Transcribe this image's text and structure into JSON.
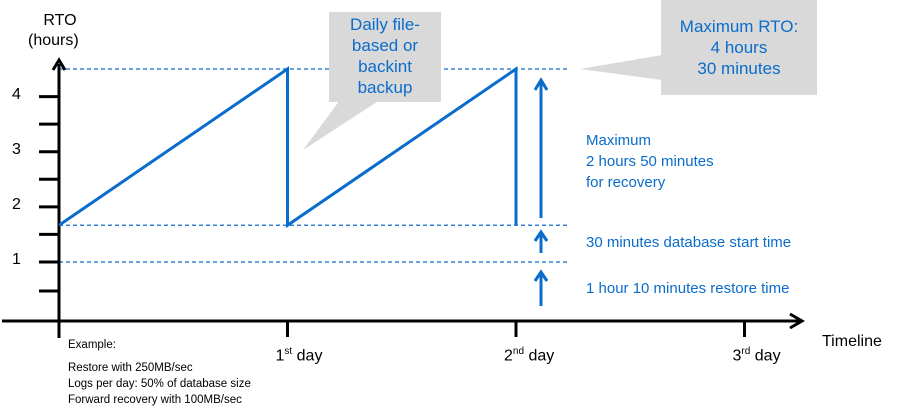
{
  "chart_data": {
    "type": "line",
    "ylabel": [
      "RTO",
      "(hours)"
    ],
    "xlabel": "Timeline",
    "y_ticks": [
      "1",
      "2",
      "3",
      "4"
    ],
    "x_ticks": [
      {
        "num": "1",
        "sup": "st",
        "word": "day"
      },
      {
        "num": "2",
        "sup": "nd",
        "word": "day"
      },
      {
        "num": "3",
        "sup": "rd",
        "word": "day"
      }
    ],
    "series": [
      {
        "x": [
          0,
          1,
          1,
          2,
          2
        ],
        "y": [
          1.6667,
          4.5,
          1.6667,
          4.5,
          1.6667
        ]
      }
    ],
    "reference_lines_hours": [
      1,
      1.6667,
      4.5
    ],
    "ylim": [
      0,
      4.8
    ],
    "xlim": [
      0,
      3.2
    ],
    "line_color": "#0a6ccc"
  },
  "callouts": {
    "backup": [
      "Daily file-",
      "based or",
      "backint",
      "backup"
    ],
    "max_rto": [
      "Maximum RTO:",
      "4 hours",
      "30 minutes"
    ]
  },
  "annotations": {
    "recovery": [
      "Maximum",
      "2 hours 50 minutes",
      "for recovery"
    ],
    "start_time": "30 minutes database start time",
    "restore_time": "1 hour 10 minutes restore time"
  },
  "example": {
    "title": "Example:",
    "lines": [
      "Restore with 250MB/sec",
      "Logs per day: 50% of database size",
      "Forward recovery with 100MB/sec"
    ]
  }
}
